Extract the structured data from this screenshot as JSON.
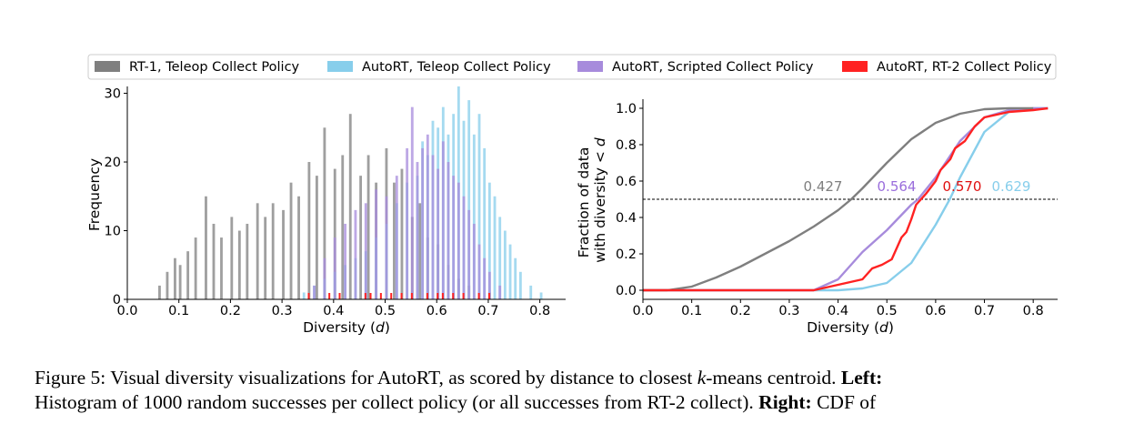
{
  "legend": {
    "items": [
      {
        "label": "RT-1, Teleop Collect Policy",
        "color": "#7f7f7f"
      },
      {
        "label": "AutoRT, Teleop Collect Policy",
        "color": "#87ceeb"
      },
      {
        "label": "AutoRT, Scripted Collect Policy",
        "color": "#a78bdc"
      },
      {
        "label": "AutoRT, RT-2 Collect Policy",
        "color": "#ff2222"
      }
    ]
  },
  "caption": {
    "figure_label": "Figure 5:",
    "line1": "Visual diversity visualizations for AutoRT, as scored by distance to closest",
    "k": "k",
    "line1_end": "-means centroid.",
    "left_label": "Left:",
    "line2": "Histogram of 1000 random successes per collect policy (or all successes from RT-2 collect).",
    "right_label": "Right:",
    "line2_end": "CDF of"
  },
  "chart_data": [
    {
      "type": "bar",
      "subtype": "histogram",
      "xlabel": "Diversity (d)",
      "ylabel": "Frequency",
      "xlim": [
        0.0,
        0.85
      ],
      "ylim": [
        0,
        31
      ],
      "xticks": [
        "0.0",
        "0.1",
        "0.2",
        "0.3",
        "0.4",
        "0.5",
        "0.6",
        "0.7",
        "0.8"
      ],
      "yticks": [
        "0",
        "10",
        "20",
        "30"
      ],
      "bin_width": 0.005,
      "series": [
        {
          "name": "RT-1, Teleop Collect Policy",
          "color": "#7f7f7f",
          "x": [
            0.06,
            0.075,
            0.09,
            0.1,
            0.115,
            0.13,
            0.15,
            0.165,
            0.18,
            0.2,
            0.215,
            0.23,
            0.25,
            0.265,
            0.28,
            0.3,
            0.315,
            0.33,
            0.35,
            0.365,
            0.38,
            0.4,
            0.415,
            0.43,
            0.45,
            0.465,
            0.48,
            0.5,
            0.515,
            0.53,
            0.55,
            0.565,
            0.58,
            0.6,
            0.62,
            0.64,
            0.66,
            0.7
          ],
          "values": [
            2,
            4,
            6,
            5,
            7,
            9,
            15,
            11,
            9,
            12,
            10,
            11,
            14,
            12,
            14,
            13,
            17,
            15,
            20,
            18,
            25,
            19,
            21,
            27,
            18,
            21,
            17,
            22,
            17,
            19,
            12,
            14,
            9,
            8,
            5,
            3,
            2,
            1
          ]
        },
        {
          "name": "AutoRT, Teleop Collect Policy",
          "color": "#87ceeb",
          "x": [
            0.34,
            0.36,
            0.38,
            0.4,
            0.42,
            0.44,
            0.46,
            0.48,
            0.5,
            0.52,
            0.54,
            0.56,
            0.57,
            0.58,
            0.59,
            0.6,
            0.61,
            0.62,
            0.63,
            0.64,
            0.65,
            0.66,
            0.67,
            0.68,
            0.69,
            0.7,
            0.71,
            0.72,
            0.73,
            0.74,
            0.75,
            0.76,
            0.78,
            0.8
          ],
          "values": [
            1,
            2,
            3,
            4,
            5,
            6,
            7,
            9,
            11,
            14,
            17,
            18,
            23,
            21,
            26,
            25,
            28,
            24,
            27,
            31,
            26,
            29,
            24,
            27,
            22,
            17,
            15,
            12,
            10,
            8,
            6,
            4,
            2,
            1
          ]
        },
        {
          "name": "AutoRT, Scripted Collect Policy",
          "color": "#a78bdc",
          "x": [
            0.36,
            0.38,
            0.4,
            0.42,
            0.44,
            0.46,
            0.48,
            0.5,
            0.52,
            0.54,
            0.55,
            0.56,
            0.57,
            0.58,
            0.59,
            0.6,
            0.61,
            0.62,
            0.63,
            0.64,
            0.65,
            0.66,
            0.67,
            0.68,
            0.69,
            0.7,
            0.72
          ],
          "values": [
            2,
            6,
            9,
            11,
            13,
            14,
            16,
            15,
            18,
            22,
            28,
            20,
            22,
            24,
            21,
            19,
            23,
            20,
            18,
            17,
            15,
            13,
            11,
            8,
            6,
            4,
            2
          ]
        },
        {
          "name": "AutoRT, RT-2 Collect Policy",
          "color": "#ff2222",
          "x": [
            0.35,
            0.39,
            0.41,
            0.46,
            0.47,
            0.49,
            0.51,
            0.53,
            0.55,
            0.58,
            0.6,
            0.61,
            0.63,
            0.65,
            0.68,
            0.7
          ],
          "values": [
            1,
            1,
            1,
            1,
            1,
            1,
            1,
            1,
            1,
            1,
            1,
            1,
            1,
            1,
            1,
            1
          ]
        }
      ]
    },
    {
      "type": "line",
      "subtype": "cdf",
      "xlabel": "Diversity (d)",
      "ylabel": "Fraction of data with diversity < d",
      "xlim": [
        0.0,
        0.85
      ],
      "ylim": [
        -0.05,
        1.05
      ],
      "xticks": [
        "0.0",
        "0.1",
        "0.2",
        "0.3",
        "0.4",
        "0.5",
        "0.6",
        "0.7",
        "0.8"
      ],
      "yticks": [
        "0.0",
        "0.2",
        "0.4",
        "0.6",
        "0.8",
        "1.0"
      ],
      "reference_line": {
        "y": 0.5,
        "style": "dashed"
      },
      "median_labels": [
        {
          "text": "0.427",
          "color": "#7f7f7f"
        },
        {
          "text": "0.564",
          "color": "#9a6ddc"
        },
        {
          "text": "0.570",
          "color": "#e01010"
        },
        {
          "text": "0.629",
          "color": "#87ceeb"
        }
      ],
      "series": [
        {
          "name": "RT-1, Teleop Collect Policy",
          "color": "#7f7f7f",
          "x": [
            0.0,
            0.05,
            0.1,
            0.15,
            0.2,
            0.25,
            0.3,
            0.35,
            0.4,
            0.427,
            0.45,
            0.5,
            0.55,
            0.6,
            0.65,
            0.7,
            0.75,
            0.8
          ],
          "y": [
            0.0,
            0.0,
            0.02,
            0.07,
            0.13,
            0.2,
            0.27,
            0.35,
            0.44,
            0.5,
            0.56,
            0.7,
            0.83,
            0.92,
            0.97,
            0.995,
            1.0,
            1.0
          ]
        },
        {
          "name": "AutoRT, Teleop Collect Policy",
          "color": "#87ceeb",
          "x": [
            0.0,
            0.3,
            0.4,
            0.45,
            0.5,
            0.55,
            0.6,
            0.629,
            0.65,
            0.7,
            0.75,
            0.8,
            0.83
          ],
          "y": [
            0.0,
            0.0,
            0.0,
            0.01,
            0.04,
            0.15,
            0.36,
            0.5,
            0.62,
            0.87,
            0.98,
            1.0,
            1.0
          ]
        },
        {
          "name": "AutoRT, Scripted Collect Policy",
          "color": "#a78bdc",
          "x": [
            0.0,
            0.3,
            0.35,
            0.4,
            0.45,
            0.5,
            0.55,
            0.564,
            0.6,
            0.65,
            0.7,
            0.75,
            0.8,
            0.83
          ],
          "y": [
            0.0,
            0.0,
            0.0,
            0.06,
            0.21,
            0.33,
            0.47,
            0.5,
            0.62,
            0.82,
            0.95,
            0.99,
            1.0,
            1.0
          ]
        },
        {
          "name": "AutoRT, RT-2 Collect Policy",
          "color": "#ff2222",
          "x": [
            0.0,
            0.35,
            0.4,
            0.45,
            0.47,
            0.49,
            0.51,
            0.53,
            0.54,
            0.55,
            0.56,
            0.57,
            0.58,
            0.6,
            0.61,
            0.63,
            0.64,
            0.66,
            0.68,
            0.7,
            0.75,
            0.8,
            0.83
          ],
          "y": [
            0.0,
            0.0,
            0.03,
            0.06,
            0.12,
            0.14,
            0.17,
            0.29,
            0.32,
            0.39,
            0.47,
            0.5,
            0.53,
            0.6,
            0.66,
            0.72,
            0.78,
            0.82,
            0.9,
            0.95,
            0.98,
            0.99,
            1.0
          ]
        }
      ]
    }
  ]
}
